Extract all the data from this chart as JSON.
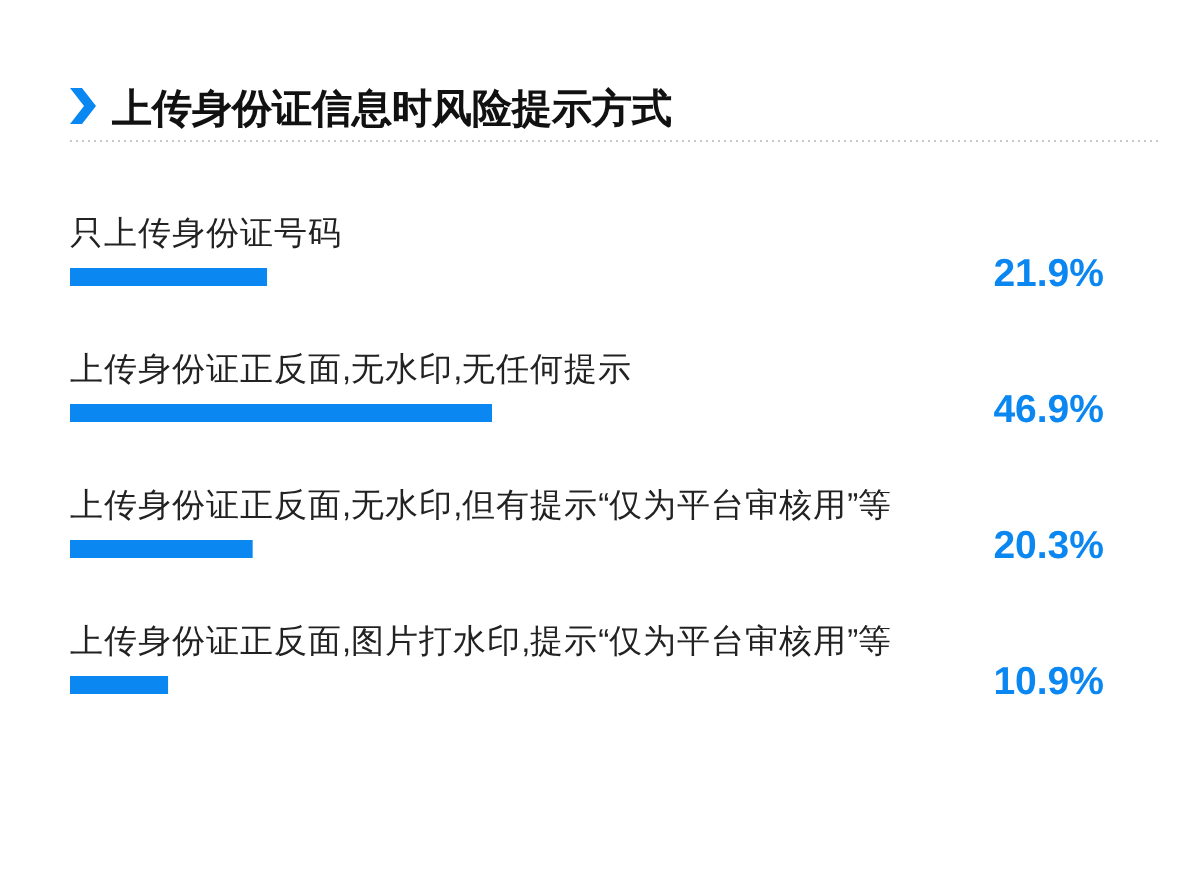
{
  "chart_data": {
    "type": "bar",
    "orientation": "horizontal",
    "title": "上传身份证信息时风险提示方式",
    "categories": [
      "只上传身份证号码",
      "上传身份证正反面,无水印,无任何提示",
      "上传身份证正反面,无水印,但有提示“仅为平台审核用”等",
      "上传身份证正反面,图片打水印,提示“仅为平台审核用”等"
    ],
    "values": [
      21.9,
      46.9,
      20.3,
      10.9
    ],
    "value_labels": [
      "21.9%",
      "46.9%",
      "20.3%",
      "10.9%"
    ],
    "color": "#0b87f2"
  }
}
